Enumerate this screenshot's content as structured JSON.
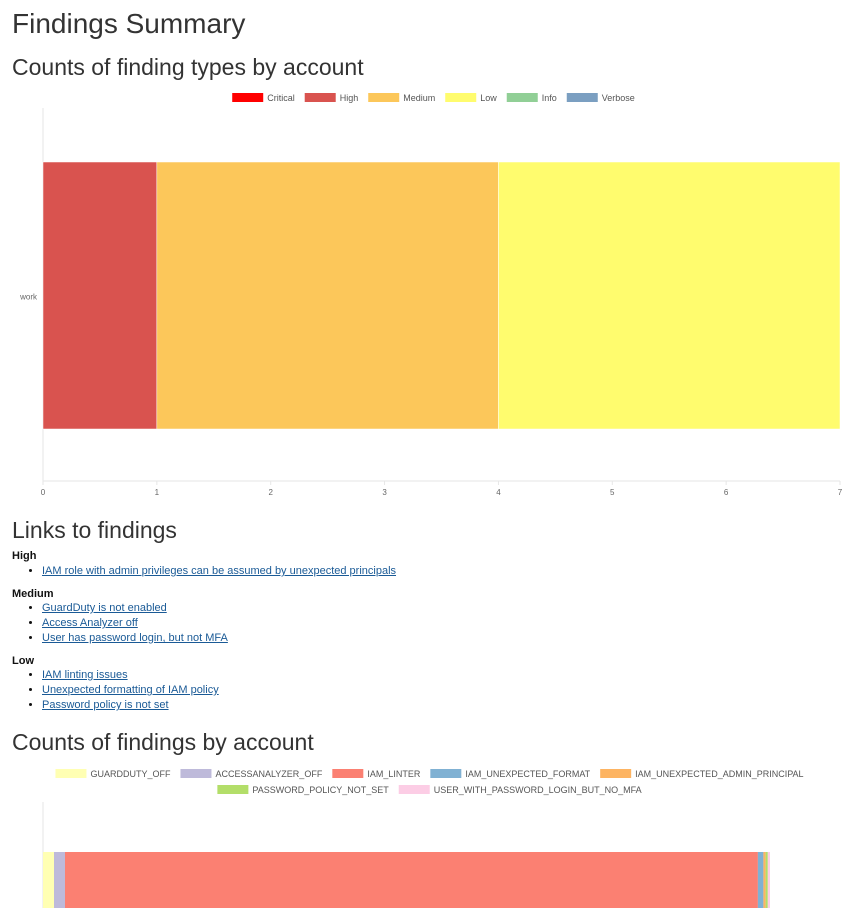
{
  "page": {
    "title": "Findings Summary",
    "section_types": "Counts of finding types by account",
    "section_links": "Links to findings",
    "section_findings": "Counts of findings by account"
  },
  "links": {
    "groups": [
      {
        "label": "High",
        "items": [
          "IAM role with admin privileges can be assumed by unexpected principals"
        ]
      },
      {
        "label": "Medium",
        "items": [
          "GuardDuty is not enabled",
          "Access Analyzer off",
          "User has password login, but not MFA"
        ]
      },
      {
        "label": "Low",
        "items": [
          "IAM linting issues",
          "Unexpected formatting of IAM policy",
          "Password policy is not set"
        ]
      }
    ]
  },
  "chart_data": [
    {
      "type": "bar",
      "orientation": "horizontal",
      "stacked": true,
      "title": "",
      "xlabel": "",
      "ylabel": "",
      "categories": [
        "work"
      ],
      "xlim": [
        0,
        7
      ],
      "xticks": [
        0,
        1,
        2,
        3,
        4,
        5,
        6,
        7
      ],
      "legend_position": "top",
      "series": [
        {
          "name": "Critical",
          "color": "#ff0000",
          "values": [
            0
          ]
        },
        {
          "name": "High",
          "color": "#d9534f",
          "values": [
            1
          ]
        },
        {
          "name": "Medium",
          "color": "#fcc75a",
          "values": [
            3
          ]
        },
        {
          "name": "Low",
          "color": "#fffc6e",
          "values": [
            3
          ]
        },
        {
          "name": "Info",
          "color": "#91cf96",
          "values": [
            0
          ]
        },
        {
          "name": "Verbose",
          "color": "#7b9fc1",
          "values": [
            0
          ]
        }
      ]
    },
    {
      "type": "bar",
      "orientation": "horizontal",
      "stacked": true,
      "title": "",
      "xlabel": "",
      "ylabel": "",
      "categories": [
        "work"
      ],
      "legend_position": "top",
      "series": [
        {
          "name": "GUARDDUTY_OFF",
          "color": "#ffffb3",
          "values": [
            1
          ]
        },
        {
          "name": "ACCESSANALYZER_OFF",
          "color": "#bebada",
          "values": [
            1
          ]
        },
        {
          "name": "IAM_LINTER",
          "color": "#fb8072",
          "values": [
            63
          ]
        },
        {
          "name": "IAM_UNEXPECTED_FORMAT",
          "color": "#80b1d3",
          "values": [
            0.5
          ]
        },
        {
          "name": "IAM_UNEXPECTED_ADMIN_PRINCIPAL",
          "color": "#fdb462",
          "values": [
            0.2
          ]
        },
        {
          "name": "PASSWORD_POLICY_NOT_SET",
          "color": "#b3de69",
          "values": [
            0.2
          ]
        },
        {
          "name": "USER_WITH_PASSWORD_LOGIN_BUT_NO_MFA",
          "color": "#fccde5",
          "values": [
            0.2
          ]
        }
      ]
    }
  ]
}
